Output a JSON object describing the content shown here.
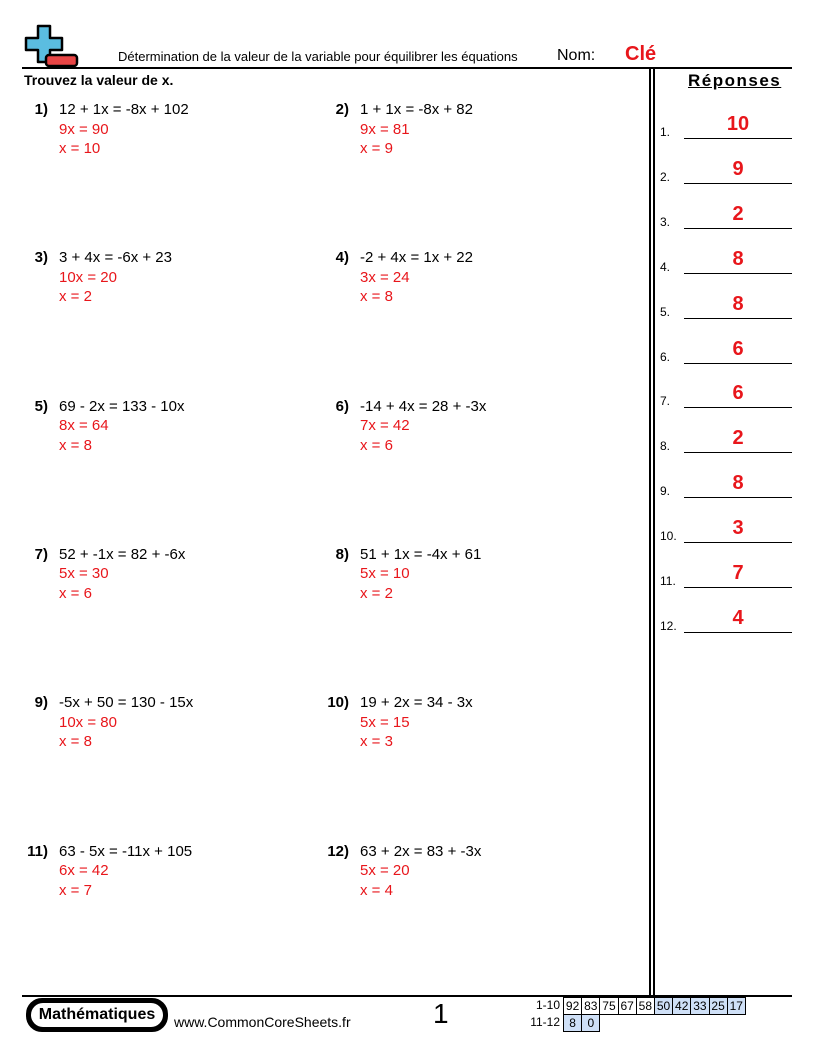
{
  "header": {
    "title": "Détermination de la valeur de la variable pour équilibrer les équations",
    "name_label": "Nom:",
    "name_value": "Clé",
    "logo": "plus-minus-logo"
  },
  "instructions": "Trouvez la valeur de x.",
  "answers_title": "Réponses",
  "problems": [
    {
      "num": "1)",
      "eq": "12 + 1x = -8x + 102",
      "s1": "9x = 90",
      "s2": "x = 10"
    },
    {
      "num": "2)",
      "eq": "1 + 1x = -8x + 82",
      "s1": "9x = 81",
      "s2": "x = 9"
    },
    {
      "num": "3)",
      "eq": "3 + 4x = -6x + 23",
      "s1": "10x = 20",
      "s2": "x = 2"
    },
    {
      "num": "4)",
      "eq": "-2 + 4x = 1x + 22",
      "s1": "3x = 24",
      "s2": "x = 8"
    },
    {
      "num": "5)",
      "eq": "69 - 2x = 133 - 10x",
      "s1": "8x = 64",
      "s2": "x = 8"
    },
    {
      "num": "6)",
      "eq": "-14 + 4x = 28 + -3x",
      "s1": "7x = 42",
      "s2": "x = 6"
    },
    {
      "num": "7)",
      "eq": "52 + -1x = 82 + -6x",
      "s1": "5x = 30",
      "s2": "x = 6"
    },
    {
      "num": "8)",
      "eq": "51 + 1x = -4x + 61",
      "s1": "5x = 10",
      "s2": "x = 2"
    },
    {
      "num": "9)",
      "eq": "-5x + 50 = 130 - 15x",
      "s1": "10x = 80",
      "s2": "x = 8"
    },
    {
      "num": "10)",
      "eq": "19 + 2x = 34 - 3x",
      "s1": "5x = 15",
      "s2": "x = 3"
    },
    {
      "num": "11)",
      "eq": "63 - 5x = -11x + 105",
      "s1": "6x = 42",
      "s2": "x = 7"
    },
    {
      "num": "12)",
      "eq": "63 + 2x = 83 + -3x",
      "s1": "5x = 20",
      "s2": "x = 4"
    }
  ],
  "answers": [
    {
      "n": "1.",
      "v": "10"
    },
    {
      "n": "2.",
      "v": "9"
    },
    {
      "n": "3.",
      "v": "2"
    },
    {
      "n": "4.",
      "v": "8"
    },
    {
      "n": "5.",
      "v": "8"
    },
    {
      "n": "6.",
      "v": "6"
    },
    {
      "n": "7.",
      "v": "6"
    },
    {
      "n": "8.",
      "v": "2"
    },
    {
      "n": "9.",
      "v": "8"
    },
    {
      "n": "10.",
      "v": "3"
    },
    {
      "n": "11.",
      "v": "7"
    },
    {
      "n": "12.",
      "v": "4"
    }
  ],
  "footer": {
    "badge": "Mathématiques",
    "site": "www.CommonCoreSheets.fr",
    "page": "1",
    "scores": [
      {
        "label": "1-10",
        "cells": [
          "92",
          "83",
          "75",
          "67",
          "58",
          "50",
          "42",
          "33",
          "25",
          "17"
        ]
      },
      {
        "label": "11-12",
        "cells": [
          "8",
          "0"
        ]
      }
    ]
  },
  "colors": {
    "answer_red": "#e8161b",
    "score_highlight": "#cfe0f7",
    "logo_blue": "#5bbde0",
    "logo_red": "#e84545"
  }
}
